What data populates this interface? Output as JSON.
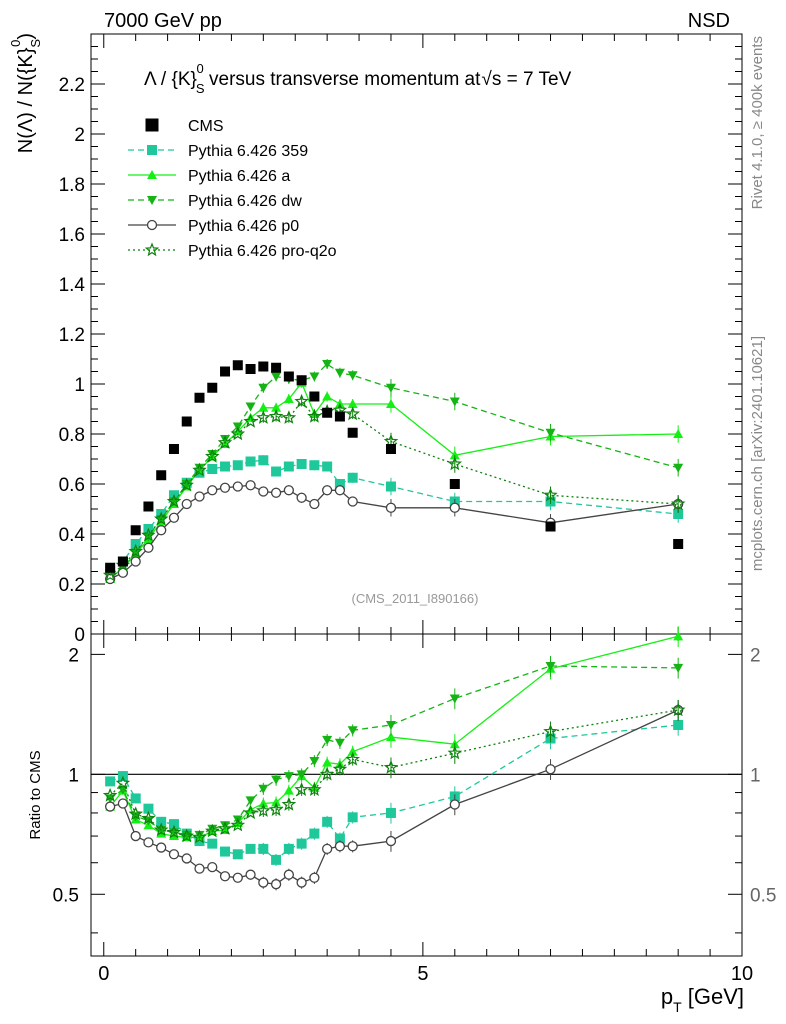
{
  "header": {
    "left": "7000 GeV pp",
    "right": "NSD"
  },
  "side_labels": {
    "top": "Rivet 4.1.0, ≥ 400k events",
    "bottom": "mcplots.cern.ch [arXiv:2401.10621]"
  },
  "watermark": "(CMS_2011_I890166)",
  "chart_data": {
    "type": "line",
    "title": "Λ / {K}S0 versus transverse momentum at √s = 7 TeV",
    "title_parts": {
      "lead": "Λ / {K}",
      "sub": "S",
      "sup": "0",
      "tail": " versus transverse momentum at",
      "root": "s",
      "end": " = 7 TeV"
    },
    "ylabel": "N(Λ)  /  N({K}S0)",
    "ylabel_parts": {
      "lead": "N(Λ)  /  N({K}",
      "sub": "S",
      "sup": "0",
      "tail": ")"
    },
    "xlabel": "pT [GeV]",
    "xlabel_parts": {
      "lead": "p",
      "sub": "T",
      "tail": " [GeV]"
    },
    "ratio_ylabel": "Ratio to CMS",
    "xlim": [
      -0.2,
      10.0
    ],
    "ylim": [
      0,
      2.4
    ],
    "ratio_ylim": [
      0.35,
      2.25
    ],
    "x_ticks": [
      "0",
      "5",
      "10"
    ],
    "y_ticks": [
      "0",
      "0.2",
      "0.4",
      "0.6",
      "0.8",
      "1",
      "1.2",
      "1.4",
      "1.6",
      "1.8",
      "2",
      "2.2"
    ],
    "ratio_ticks": [
      "0.5",
      "1",
      "2"
    ],
    "x": [
      0.1,
      0.3,
      0.5,
      0.7,
      0.9,
      1.1,
      1.3,
      1.5,
      1.7,
      1.9,
      2.1,
      2.3,
      2.5,
      2.7,
      2.9,
      3.1,
      3.3,
      3.5,
      3.7,
      3.9,
      4.5,
      5.5,
      7.0,
      9.0
    ],
    "series": [
      {
        "name": "CMS",
        "color": "#000000",
        "marker": "square-filled",
        "line": "none",
        "values": [
          0.265,
          0.29,
          0.415,
          0.51,
          0.635,
          0.74,
          0.85,
          0.945,
          0.985,
          1.05,
          1.075,
          1.06,
          1.07,
          1.065,
          1.03,
          1.015,
          0.95,
          0.885,
          0.87,
          0.805,
          0.74,
          0.6,
          0.43,
          0.36
        ]
      },
      {
        "name": "Pythia 6.426 359",
        "color": "#1ec89a",
        "marker": "square-filled",
        "line": "dashed",
        "values": [
          0.255,
          0.29,
          0.36,
          0.42,
          0.48,
          0.555,
          0.605,
          0.645,
          0.66,
          0.67,
          0.675,
          0.69,
          0.695,
          0.65,
          0.67,
          0.68,
          0.675,
          0.67,
          0.6,
          0.625,
          0.59,
          0.53,
          0.53,
          0.48
        ]
      },
      {
        "name": "Pythia 6.426 a",
        "color": "#14f014",
        "marker": "triangle-up-filled",
        "line": "solid",
        "values": [
          0.22,
          0.265,
          0.32,
          0.38,
          0.45,
          0.52,
          0.59,
          0.655,
          0.71,
          0.76,
          0.81,
          0.865,
          0.905,
          0.905,
          0.94,
          1.005,
          0.88,
          0.95,
          0.92,
          0.92,
          0.92,
          0.715,
          0.79,
          0.8
        ]
      },
      {
        "name": "Pythia 6.426 dw",
        "color": "#14b414",
        "marker": "triangle-down-filled",
        "line": "dashed",
        "values": [
          0.23,
          0.265,
          0.325,
          0.39,
          0.46,
          0.53,
          0.6,
          0.665,
          0.72,
          0.78,
          0.83,
          0.91,
          0.985,
          1.03,
          1.02,
          1.015,
          1.03,
          1.08,
          1.045,
          1.035,
          0.985,
          0.93,
          0.805,
          0.665
        ]
      },
      {
        "name": "Pythia 6.426 p0",
        "color": "#444444",
        "marker": "circle-open",
        "line": "solid",
        "values": [
          0.22,
          0.245,
          0.29,
          0.345,
          0.415,
          0.465,
          0.52,
          0.55,
          0.575,
          0.585,
          0.59,
          0.595,
          0.57,
          0.565,
          0.575,
          0.545,
          0.52,
          0.575,
          0.575,
          0.53,
          0.505,
          0.505,
          0.445,
          0.52
        ]
      },
      {
        "name": "Pythia 6.426 pro-q2o",
        "color": "#0c820c",
        "marker": "star-open",
        "line": "dotted",
        "values": [
          0.235,
          0.275,
          0.33,
          0.395,
          0.46,
          0.53,
          0.595,
          0.655,
          0.71,
          0.765,
          0.8,
          0.85,
          0.865,
          0.87,
          0.865,
          0.93,
          0.87,
          0.89,
          0.895,
          0.88,
          0.77,
          0.68,
          0.555,
          0.52
        ]
      }
    ],
    "ratio_series": [
      {
        "name": "Pythia 6.426 359",
        "values": [
          0.96,
          0.99,
          0.87,
          0.82,
          0.76,
          0.75,
          0.71,
          0.68,
          0.67,
          0.64,
          0.63,
          0.65,
          0.65,
          0.61,
          0.65,
          0.67,
          0.71,
          0.76,
          0.69,
          0.78,
          0.8,
          0.88,
          1.23,
          1.33
        ]
      },
      {
        "name": "Pythia 6.426 a",
        "values": [
          0.83,
          0.91,
          0.77,
          0.745,
          0.71,
          0.7,
          0.695,
          0.695,
          0.72,
          0.725,
          0.755,
          0.815,
          0.845,
          0.85,
          0.91,
          0.99,
          0.925,
          1.07,
          1.06,
          1.14,
          1.24,
          1.19,
          1.84,
          2.22
        ]
      },
      {
        "name": "Pythia 6.426 dw",
        "values": [
          0.87,
          0.915,
          0.785,
          0.765,
          0.725,
          0.715,
          0.705,
          0.705,
          0.73,
          0.745,
          0.77,
          0.86,
          0.92,
          0.97,
          0.99,
          1.0,
          1.08,
          1.22,
          1.2,
          1.29,
          1.33,
          1.55,
          1.87,
          1.85
        ]
      },
      {
        "name": "Pythia 6.426 p0",
        "values": [
          0.83,
          0.845,
          0.7,
          0.675,
          0.655,
          0.63,
          0.615,
          0.58,
          0.585,
          0.555,
          0.55,
          0.56,
          0.535,
          0.53,
          0.56,
          0.535,
          0.55,
          0.65,
          0.66,
          0.66,
          0.68,
          0.84,
          1.03,
          1.45
        ]
      },
      {
        "name": "Pythia 6.426 pro-q2o",
        "values": [
          0.885,
          0.95,
          0.795,
          0.775,
          0.725,
          0.715,
          0.7,
          0.695,
          0.72,
          0.73,
          0.745,
          0.8,
          0.81,
          0.815,
          0.84,
          0.915,
          0.915,
          1.0,
          1.03,
          1.09,
          1.04,
          1.13,
          1.28,
          1.45
        ]
      }
    ]
  }
}
